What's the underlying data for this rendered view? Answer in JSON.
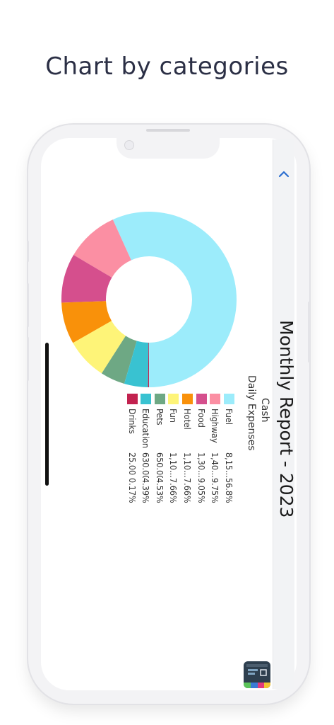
{
  "headline": "Chart by categories",
  "report": {
    "title": "Monthly Report - 2023",
    "payment": "Cash",
    "subtitle": "Daily Expenses"
  },
  "chart_data": {
    "type": "pie",
    "donut": true,
    "categories": [
      "Fuel",
      "Highway",
      "Food",
      "Hotel",
      "Fun",
      "Pets",
      "Education",
      "Drinks"
    ],
    "values": [
      8150,
      1400,
      1300,
      1100,
      1100,
      650,
      630,
      25
    ],
    "value_labels": [
      "8,15...",
      "1,40...",
      "1,30...",
      "1,10...",
      "1,10...",
      "650.00",
      "630.00",
      "25.00"
    ],
    "percent_labels": [
      "56.8%",
      "9.75%",
      "9.05%",
      "7.66%",
      "7.66%",
      "4.53%",
      "4.39%",
      "0.17%"
    ],
    "colors": [
      "#9cecfb",
      "#fb8fa3",
      "#d54f8d",
      "#f9910a",
      "#fef478",
      "#6ea884",
      "#39c2d1",
      "#c2224f"
    ],
    "legend": "bottom"
  },
  "icons": {
    "chevron": "chevron-up-icon",
    "app": "app-icon"
  }
}
